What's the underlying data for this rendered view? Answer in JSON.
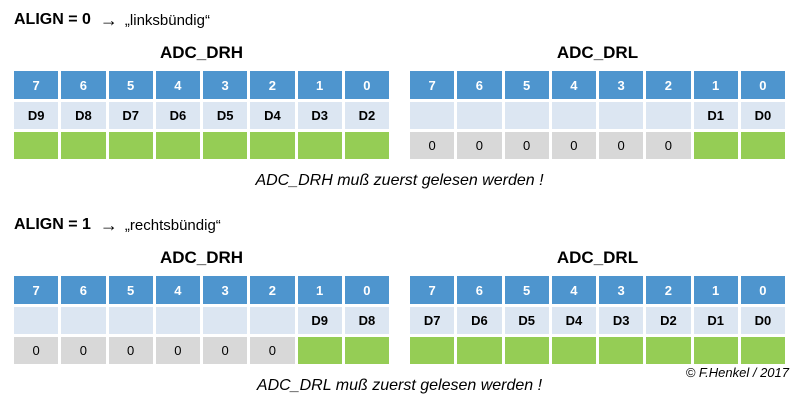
{
  "colors": {
    "header_blue": "#4e95ce",
    "row_lavender": "#dce6f2",
    "zero_gray": "#d8d8d8",
    "data_green": "#95cd55"
  },
  "copyright": "© F.Henkel / 2017",
  "sections": [
    {
      "align_label": "ALIGN = 0",
      "arrow": "→",
      "align_mode": "„linksbündig“",
      "caption": "ADC_DRH muß zuerst gelesen werden !",
      "tables": [
        {
          "title": "ADC_DRH",
          "header_bits": [
            "7",
            "6",
            "5",
            "4",
            "3",
            "2",
            "1",
            "0"
          ],
          "data_row": [
            "D9",
            "D8",
            "D7",
            "D6",
            "D5",
            "D4",
            "D3",
            "D2"
          ],
          "value_row": [
            "",
            "",
            "",
            "",
            "",
            "",
            "",
            ""
          ]
        },
        {
          "title": "ADC_DRL",
          "header_bits": [
            "7",
            "6",
            "5",
            "4",
            "3",
            "2",
            "1",
            "0"
          ],
          "data_row": [
            "",
            "",
            "",
            "",
            "",
            "",
            "D1",
            "D0"
          ],
          "value_row": [
            "0",
            "0",
            "0",
            "0",
            "0",
            "0",
            "",
            ""
          ]
        }
      ]
    },
    {
      "align_label": "ALIGN = 1",
      "arrow": "→",
      "align_mode": "„rechtsbündig“",
      "caption": "ADC_DRL muß zuerst gelesen werden !",
      "tables": [
        {
          "title": "ADC_DRH",
          "header_bits": [
            "7",
            "6",
            "5",
            "4",
            "3",
            "2",
            "1",
            "0"
          ],
          "data_row": [
            "",
            "",
            "",
            "",
            "",
            "",
            "D9",
            "D8"
          ],
          "value_row": [
            "0",
            "0",
            "0",
            "0",
            "0",
            "0",
            "",
            ""
          ]
        },
        {
          "title": "ADC_DRL",
          "header_bits": [
            "7",
            "6",
            "5",
            "4",
            "3",
            "2",
            "1",
            "0"
          ],
          "data_row": [
            "D7",
            "D6",
            "D5",
            "D4",
            "D3",
            "D2",
            "D1",
            "D0"
          ],
          "value_row": [
            "",
            "",
            "",
            "",
            "",
            "",
            "",
            ""
          ]
        }
      ]
    }
  ]
}
